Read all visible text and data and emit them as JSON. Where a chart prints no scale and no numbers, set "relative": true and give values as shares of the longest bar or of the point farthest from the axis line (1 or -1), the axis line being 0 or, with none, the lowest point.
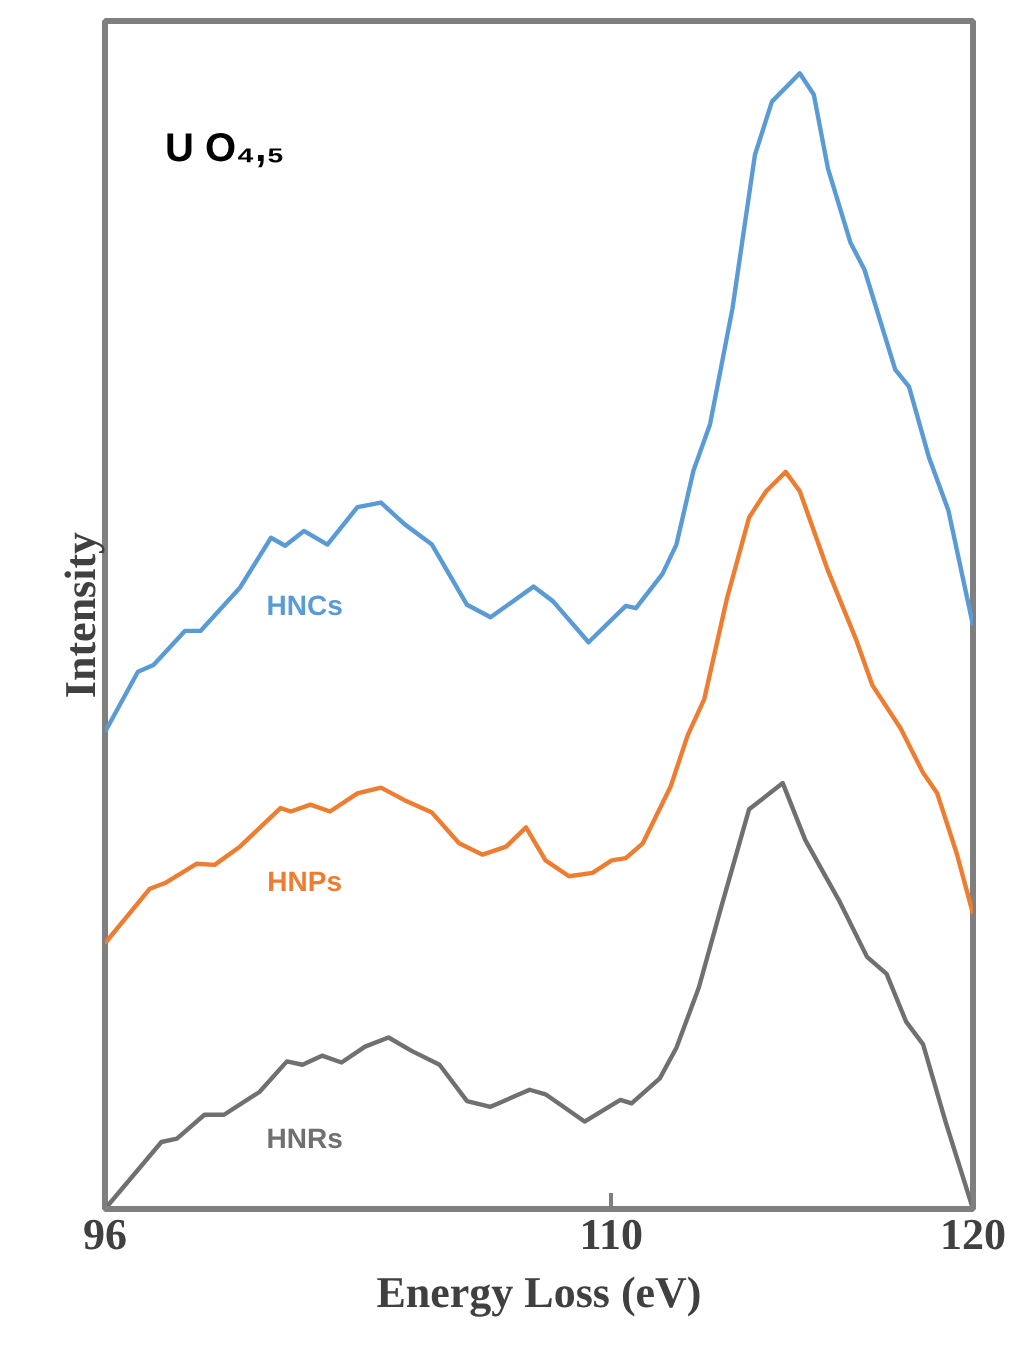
{
  "chart_data": {
    "type": "line",
    "relative": true,
    "xlabel": "Energy Loss (eV)",
    "ylabel": "Intensity",
    "annotations": [
      "U O₄,₅"
    ],
    "xlim": [
      96,
      120
    ],
    "xticks": [
      96,
      110,
      120
    ],
    "grid": false,
    "legend": false,
    "marker": "none",
    "line_style": "solid",
    "series": [
      {
        "name": "HNCs",
        "color": "#5b9bd5",
        "x": [
          96.0,
          96.91,
          97.34,
          98.21,
          98.64,
          99.73,
          100.59,
          100.98,
          101.5,
          102.15,
          102.98,
          103.63,
          104.28,
          105.04,
          106.01,
          106.66,
          107.85,
          108.39,
          109.37,
          110.4,
          110.68,
          111.41,
          111.8,
          112.27,
          112.73,
          113.35,
          113.97,
          114.44,
          115.21,
          115.6,
          115.99,
          116.61,
          117.0,
          117.85,
          118.23,
          118.78,
          119.32,
          120.0
        ],
        "values": [
          0.42,
          0.473,
          0.479,
          0.509,
          0.509,
          0.547,
          0.591,
          0.584,
          0.597,
          0.585,
          0.618,
          0.622,
          0.603,
          0.585,
          0.532,
          0.521,
          0.548,
          0.535,
          0.499,
          0.531,
          0.529,
          0.559,
          0.585,
          0.65,
          0.691,
          0.793,
          0.928,
          0.975,
          1.0,
          0.981,
          0.916,
          0.851,
          0.827,
          0.739,
          0.724,
          0.662,
          0.615,
          0.514
        ]
      },
      {
        "name": "HNPs",
        "color": "#ed7d31",
        "x": [
          96.0,
          97.24,
          97.66,
          98.54,
          99.03,
          99.73,
          100.85,
          101.14,
          101.68,
          102.22,
          102.98,
          103.63,
          104.28,
          105.04,
          105.79,
          106.44,
          107.09,
          107.64,
          108.18,
          108.83,
          109.48,
          110.01,
          110.4,
          110.87,
          111.64,
          112.11,
          112.57,
          113.2,
          113.81,
          114.28,
          114.82,
          115.21,
          115.99,
          116.76,
          117.22,
          118.0,
          118.62,
          119.01,
          119.55,
          120.0
        ],
        "values": [
          0.234,
          0.282,
          0.287,
          0.304,
          0.303,
          0.319,
          0.353,
          0.35,
          0.356,
          0.35,
          0.366,
          0.371,
          0.36,
          0.349,
          0.322,
          0.312,
          0.319,
          0.336,
          0.307,
          0.293,
          0.296,
          0.307,
          0.309,
          0.322,
          0.372,
          0.417,
          0.449,
          0.538,
          0.609,
          0.632,
          0.649,
          0.632,
          0.562,
          0.502,
          0.461,
          0.423,
          0.384,
          0.366,
          0.313,
          0.26
        ]
      },
      {
        "name": "HNRs",
        "color": "#707070",
        "x": [
          96.0,
          97.56,
          97.99,
          98.75,
          99.29,
          100.27,
          101.03,
          101.46,
          102.0,
          102.54,
          103.19,
          103.84,
          104.49,
          105.25,
          106.01,
          106.66,
          107.74,
          108.18,
          109.26,
          110.25,
          110.56,
          111.34,
          111.8,
          112.42,
          113.04,
          113.81,
          114.74,
          115.36,
          116.29,
          117.07,
          117.61,
          118.15,
          118.62,
          119.24,
          120.0
        ],
        "values": [
          0.0,
          0.059,
          0.062,
          0.083,
          0.083,
          0.103,
          0.13,
          0.127,
          0.135,
          0.129,
          0.143,
          0.151,
          0.139,
          0.127,
          0.095,
          0.09,
          0.105,
          0.101,
          0.077,
          0.096,
          0.093,
          0.115,
          0.142,
          0.195,
          0.266,
          0.352,
          0.375,
          0.325,
          0.272,
          0.222,
          0.207,
          0.165,
          0.145,
          0.077,
          0.0
        ]
      }
    ]
  }
}
